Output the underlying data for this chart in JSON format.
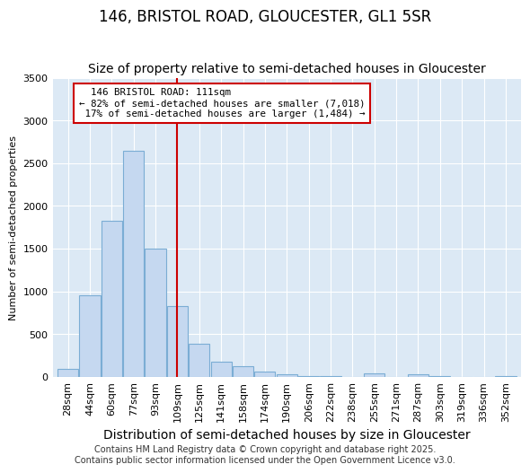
{
  "title": "146, BRISTOL ROAD, GLOUCESTER, GL1 5SR",
  "subtitle": "Size of property relative to semi-detached houses in Gloucester",
  "xlabel": "Distribution of semi-detached houses by size in Gloucester",
  "ylabel": "Number of semi-detached properties",
  "categories": [
    "28sqm",
    "44sqm",
    "60sqm",
    "77sqm",
    "93sqm",
    "109sqm",
    "125sqm",
    "141sqm",
    "158sqm",
    "174sqm",
    "190sqm",
    "206sqm",
    "222sqm",
    "238sqm",
    "255sqm",
    "271sqm",
    "287sqm",
    "303sqm",
    "319sqm",
    "336sqm",
    "352sqm"
  ],
  "values": [
    95,
    950,
    1830,
    2640,
    1500,
    830,
    390,
    175,
    125,
    55,
    30,
    10,
    5,
    0,
    35,
    0,
    30,
    5,
    0,
    0,
    5
  ],
  "bar_color": "#c5d8f0",
  "bar_edge_color": "#7badd4",
  "annotation_line": "146 BRISTOL ROAD: 111sqm",
  "pct_smaller": 82,
  "count_smaller": 7018,
  "pct_larger": 17,
  "count_larger": 1484,
  "vline_bin_index": 5,
  "vline_color": "#cc0000",
  "box_color": "#cc0000",
  "ylim": [
    0,
    3500
  ],
  "yticks": [
    0,
    500,
    1000,
    1500,
    2000,
    2500,
    3000,
    3500
  ],
  "background_color": "#ffffff",
  "plot_bg_color": "#dce9f5",
  "footer": "Contains HM Land Registry data © Crown copyright and database right 2025.\nContains public sector information licensed under the Open Government Licence v3.0.",
  "title_fontsize": 12,
  "subtitle_fontsize": 10,
  "xlabel_fontsize": 10,
  "ylabel_fontsize": 8,
  "tick_fontsize": 8,
  "footer_fontsize": 7
}
